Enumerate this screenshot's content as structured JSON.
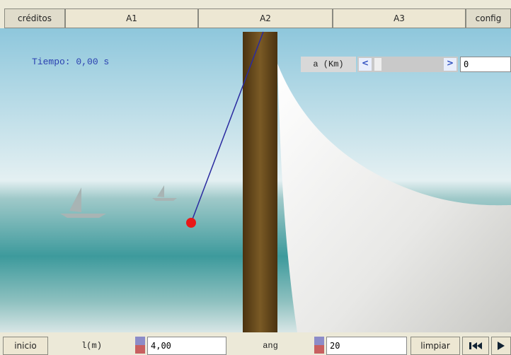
{
  "top_bar": {
    "tabs": [
      "créditos",
      "A1",
      "A2",
      "A3",
      "config"
    ]
  },
  "scene": {
    "time_label": "Tiempo: 0,00 s",
    "control": {
      "label": "a (Km)",
      "value": "0"
    }
  },
  "bottom_bar": {
    "start_button": "inicio",
    "length_label": "l(m)",
    "length_value": "4,00",
    "angle_label": "ang",
    "angle_value": "20",
    "clear_button": "limpiar"
  }
}
